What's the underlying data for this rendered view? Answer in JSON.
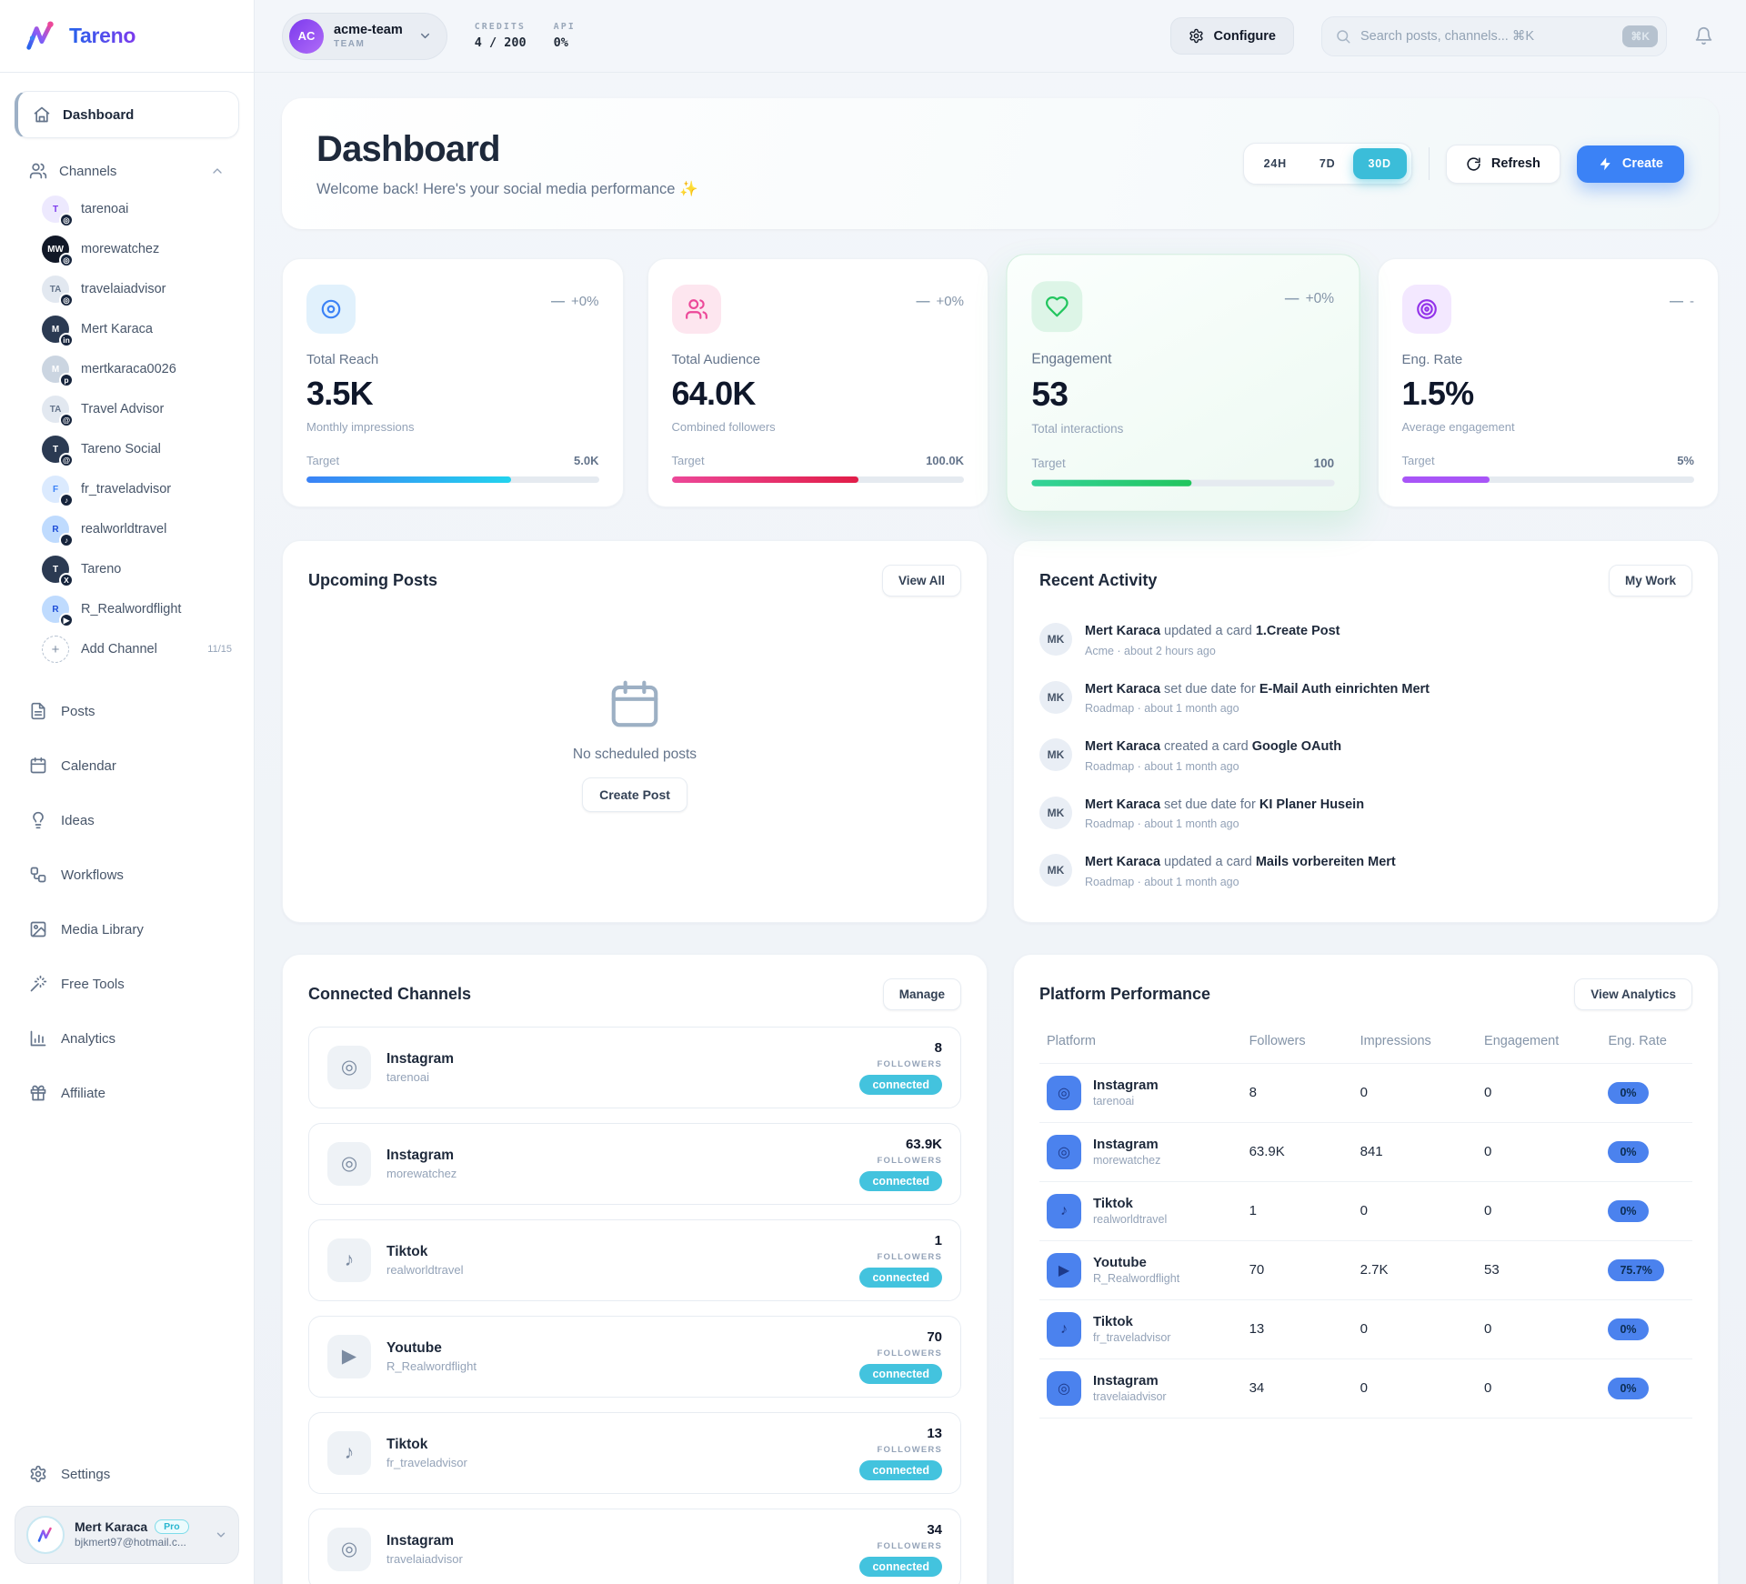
{
  "brand": {
    "name": "Tareno"
  },
  "colors": {
    "accent_blue": "#3b82f6",
    "accent_cyan": "#3bbdd9",
    "success_green": "#22c55e",
    "pink": "#ec4899",
    "purple": "#a855f7"
  },
  "icons": {
    "plus": "+",
    "dash": "—"
  },
  "topbar": {
    "team": {
      "initials": "AC",
      "name": "acme-team",
      "type": "TEAM"
    },
    "credits": {
      "label": "CREDITS",
      "value": "4 / 200"
    },
    "api": {
      "label": "API",
      "value": "0%"
    },
    "configure_label": "Configure",
    "search": {
      "placeholder": "Search posts, channels... ⌘K",
      "kbd": "⌘K"
    }
  },
  "sidebar": {
    "dashboard": "Dashboard",
    "channels_label": "Channels",
    "channels": [
      {
        "name": "tarenoai",
        "platform": "instagram",
        "badge": "◎",
        "avatar": {
          "text": "T",
          "bg": "#ede9fe",
          "fg": "#7c3aed"
        }
      },
      {
        "name": "morewatchez",
        "platform": "instagram",
        "badge": "◎",
        "avatar": {
          "text": "MW",
          "bg": "#111827",
          "fg": "#ffffff"
        }
      },
      {
        "name": "travelaiadvisor",
        "platform": "instagram",
        "badge": "◎",
        "avatar": {
          "text": "TA",
          "bg": "#e2e8f0",
          "fg": "#64748b"
        }
      },
      {
        "name": "Mert Karaca",
        "platform": "linkedin",
        "badge": "in",
        "avatar": {
          "text": "M",
          "bg": "#2b3a52",
          "fg": "#ffffff"
        }
      },
      {
        "name": "mertkaraca0026",
        "platform": "pinterest",
        "badge": "p",
        "avatar": {
          "text": "M",
          "bg": "#cbd5e1",
          "fg": "#ffffff"
        }
      },
      {
        "name": "Travel Advisor",
        "platform": "threads",
        "badge": "@",
        "avatar": {
          "text": "TA",
          "bg": "#e2e8f0",
          "fg": "#64748b"
        }
      },
      {
        "name": "Tareno Social",
        "platform": "threads",
        "badge": "@",
        "avatar": {
          "text": "T",
          "bg": "#2b3a52",
          "fg": "#ffffff"
        }
      },
      {
        "name": "fr_traveladvisor",
        "platform": "tiktok",
        "badge": "♪",
        "avatar": {
          "text": "F",
          "bg": "#dbeafe",
          "fg": "#3b82f6"
        }
      },
      {
        "name": "realworldtravel",
        "platform": "tiktok",
        "badge": "♪",
        "avatar": {
          "text": "R",
          "bg": "#bfdbfe",
          "fg": "#1d4ed8"
        }
      },
      {
        "name": "Tareno",
        "platform": "x",
        "badge": "X",
        "avatar": {
          "text": "T",
          "bg": "#2b3a52",
          "fg": "#ffffff"
        }
      },
      {
        "name": "R_Realwordflight",
        "platform": "youtube",
        "badge": "▶",
        "avatar": {
          "text": "R",
          "bg": "#bfdbfe",
          "fg": "#1d4ed8"
        }
      }
    ],
    "add_channel": "Add Channel",
    "channel_count": "11/15",
    "nav": [
      "Posts",
      "Calendar",
      "Ideas",
      "Workflows",
      "Media Library",
      "Free Tools",
      "Analytics",
      "Affiliate"
    ],
    "settings": "Settings",
    "user": {
      "name": "Mert Karaca",
      "plan": "Pro",
      "email": "bjkmert97@hotmail.c..."
    }
  },
  "hero": {
    "title": "Dashboard",
    "subtitle": "Welcome back! Here's your social media performance ✨",
    "ranges": [
      "24H",
      "7D",
      "30D"
    ],
    "active_range": "30D",
    "refresh_label": "Refresh",
    "create_label": "Create"
  },
  "stats": [
    {
      "label": "Total Reach",
      "value": "3.5K",
      "sub": "Monthly impressions",
      "trend": "+0%",
      "target_label": "Target",
      "target": "5.0K",
      "pct": 70
    },
    {
      "label": "Total Audience",
      "value": "64.0K",
      "sub": "Combined followers",
      "trend": "+0%",
      "target_label": "Target",
      "target": "100.0K",
      "pct": 64
    },
    {
      "label": "Engagement",
      "value": "53",
      "sub": "Total interactions",
      "trend": "+0%",
      "target_label": "Target",
      "target": "100",
      "pct": 53
    },
    {
      "label": "Eng. Rate",
      "value": "1.5%",
      "sub": "Average engagement",
      "trend": "-",
      "target_label": "Target",
      "target": "5%",
      "pct": 30
    }
  ],
  "upcoming": {
    "title": "Upcoming Posts",
    "view_all_label": "View All",
    "empty_text": "No scheduled posts",
    "create_post_label": "Create Post"
  },
  "activity": {
    "title": "Recent Activity",
    "my_work_label": "My Work",
    "items": [
      {
        "initials": "MK",
        "actor": "Mert Karaca",
        "action": "updated a card",
        "target": "1.Create Post",
        "meta": "Acme · about 2 hours ago"
      },
      {
        "initials": "MK",
        "actor": "Mert Karaca",
        "action": "set due date for",
        "target": "E-Mail Auth einrichten Mert",
        "meta": "Roadmap · about 1 month ago"
      },
      {
        "initials": "MK",
        "actor": "Mert Karaca",
        "action": "created a card",
        "target": "Google OAuth",
        "meta": "Roadmap · about 1 month ago"
      },
      {
        "initials": "MK",
        "actor": "Mert Karaca",
        "action": "set due date for",
        "target": "KI Planer Husein",
        "meta": "Roadmap · about 1 month ago"
      },
      {
        "initials": "MK",
        "actor": "Mert Karaca",
        "action": "updated a card",
        "target": "Mails vorbereiten Mert",
        "meta": "Roadmap · about 1 month ago"
      }
    ]
  },
  "connected": {
    "title": "Connected Channels",
    "manage_label": "Manage",
    "followers_label": "FOLLOWERS",
    "status_label": "connected",
    "items": [
      {
        "platform": "Instagram",
        "handle": "tarenoai",
        "followers": "8",
        "glyph": "◎"
      },
      {
        "platform": "Instagram",
        "handle": "morewatchez",
        "followers": "63.9K",
        "glyph": "◎"
      },
      {
        "platform": "Tiktok",
        "handle": "realworldtravel",
        "followers": "1",
        "glyph": "♪"
      },
      {
        "platform": "Youtube",
        "handle": "R_Realwordflight",
        "followers": "70",
        "glyph": "▶"
      },
      {
        "platform": "Tiktok",
        "handle": "fr_traveladvisor",
        "followers": "13",
        "glyph": "♪"
      },
      {
        "platform": "Instagram",
        "handle": "travelaiadvisor",
        "followers": "34",
        "glyph": "◎"
      }
    ]
  },
  "performance": {
    "title": "Platform Performance",
    "analytics_label": "View Analytics",
    "headers": [
      "Platform",
      "Followers",
      "Impressions",
      "Engagement",
      "Eng. Rate"
    ],
    "rows": [
      {
        "platform": "Instagram",
        "handle": "tarenoai",
        "followers": "8",
        "impressions": "0",
        "engagement": "0",
        "rate": "0%",
        "glyph": "◎"
      },
      {
        "platform": "Instagram",
        "handle": "morewatchez",
        "followers": "63.9K",
        "impressions": "841",
        "engagement": "0",
        "rate": "0%",
        "glyph": "◎"
      },
      {
        "platform": "Tiktok",
        "handle": "realworldtravel",
        "followers": "1",
        "impressions": "0",
        "engagement": "0",
        "rate": "0%",
        "glyph": "♪"
      },
      {
        "platform": "Youtube",
        "handle": "R_Realwordflight",
        "followers": "70",
        "impressions": "2.7K",
        "engagement": "53",
        "rate": "75.7%",
        "glyph": "▶"
      },
      {
        "platform": "Tiktok",
        "handle": "fr_traveladvisor",
        "followers": "13",
        "impressions": "0",
        "engagement": "0",
        "rate": "0%",
        "glyph": "♪"
      },
      {
        "platform": "Instagram",
        "handle": "travelaiadvisor",
        "followers": "34",
        "impressions": "0",
        "engagement": "0",
        "rate": "0%",
        "glyph": "◎"
      }
    ]
  }
}
